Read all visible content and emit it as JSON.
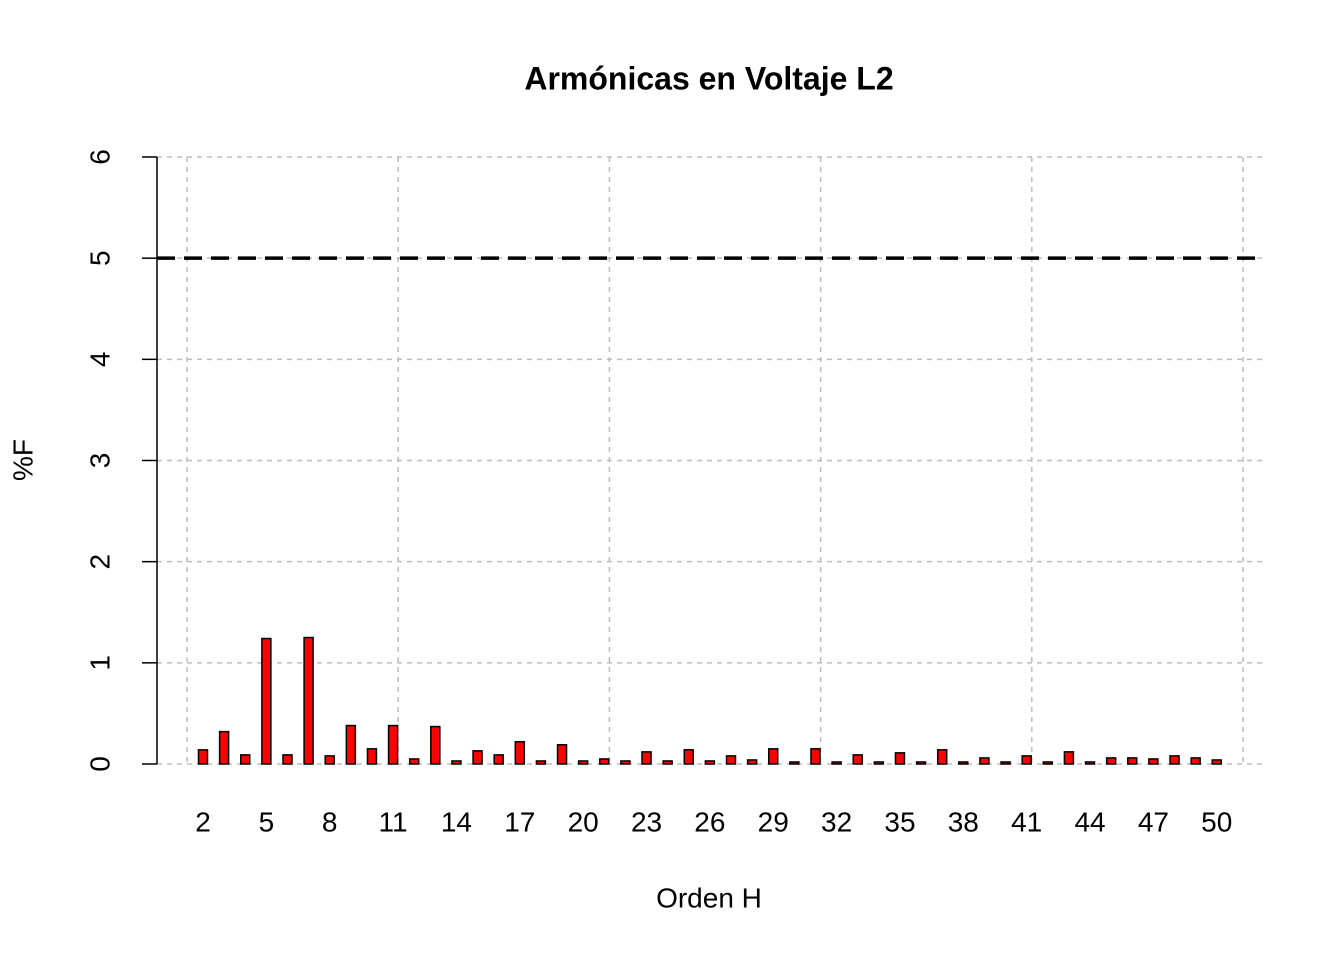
{
  "chart_data": {
    "type": "bar",
    "title": "Armónicas en Voltaje L2",
    "x_label": "Orden H",
    "y_label": "%F",
    "categories": [
      "2",
      null,
      null,
      "5",
      null,
      null,
      "8",
      null,
      null,
      "11",
      null,
      null,
      "14",
      null,
      null,
      "17",
      null,
      null,
      "20",
      null,
      null,
      "23",
      null,
      null,
      "26",
      null,
      null,
      "29",
      null,
      null,
      "32",
      null,
      null,
      "35",
      null,
      null,
      "38",
      null,
      null,
      "41",
      null,
      null,
      "44",
      null,
      null,
      "47",
      null,
      null,
      "50"
    ],
    "values": [
      0.14,
      0.32,
      0.09,
      1.24,
      0.09,
      1.25,
      0.08,
      0.38,
      0.15,
      0.38,
      0.05,
      0.37,
      0.03,
      0.13,
      0.09,
      0.22,
      0.03,
      0.19,
      0.03,
      0.05,
      0.03,
      0.12,
      0.03,
      0.14,
      0.03,
      0.08,
      0.04,
      0.15,
      0.02,
      0.15,
      0.02,
      0.09,
      0.02,
      0.11,
      0.02,
      0.14,
      0.02,
      0.06,
      0.02,
      0.08,
      0.02,
      0.12,
      0.02,
      0.06,
      0.06,
      0.05,
      0.08,
      0.06,
      0.04
    ],
    "color": "#ff0000",
    "ylim": [
      0,
      6
    ],
    "yticks": [
      0,
      1,
      2,
      3,
      4,
      5,
      6
    ],
    "grid": true,
    "reference_line": 5
  }
}
